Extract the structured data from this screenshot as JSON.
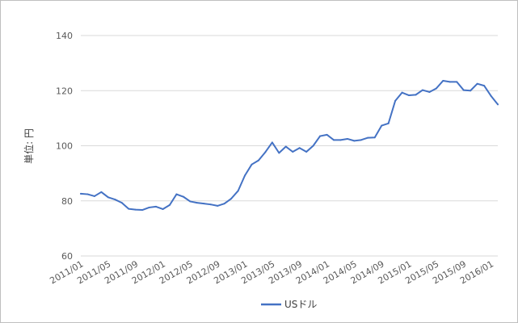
{
  "chart_data": {
    "type": "line",
    "title": "",
    "ylabel": "単位: 円",
    "xlabel": "",
    "ylim": [
      60,
      140
    ],
    "yticks": [
      60,
      80,
      100,
      120,
      140
    ],
    "xtick_labels": [
      "2011/01",
      "2011/05",
      "2011/09",
      "2012/01",
      "2012/05",
      "2012/09",
      "2013/01",
      "2013/05",
      "2013/09",
      "2014/01",
      "2014/05",
      "2014/09",
      "2015/01",
      "2015/05",
      "2015/09",
      "2016/01"
    ],
    "x": [
      "2011/01",
      "2011/02",
      "2011/03",
      "2011/04",
      "2011/05",
      "2011/06",
      "2011/07",
      "2011/08",
      "2011/09",
      "2011/10",
      "2011/11",
      "2011/12",
      "2012/01",
      "2012/02",
      "2012/03",
      "2012/04",
      "2012/05",
      "2012/06",
      "2012/07",
      "2012/08",
      "2012/09",
      "2012/10",
      "2012/11",
      "2012/12",
      "2013/01",
      "2013/02",
      "2013/03",
      "2013/04",
      "2013/05",
      "2013/06",
      "2013/07",
      "2013/08",
      "2013/09",
      "2013/10",
      "2013/11",
      "2013/12",
      "2014/01",
      "2014/02",
      "2014/03",
      "2014/04",
      "2014/05",
      "2014/06",
      "2014/07",
      "2014/08",
      "2014/09",
      "2014/10",
      "2014/11",
      "2014/12",
      "2015/01",
      "2015/02",
      "2015/03",
      "2015/04",
      "2015/05",
      "2015/06",
      "2015/07",
      "2015/08",
      "2015/09",
      "2015/10",
      "2015/11",
      "2015/12",
      "2016/01",
      "2016/02"
    ],
    "series": [
      {
        "name": "USドル",
        "color": "#4472c4",
        "values": [
          82.6,
          82.4,
          81.7,
          83.2,
          81.3,
          80.5,
          79.3,
          77.1,
          76.8,
          76.7,
          77.6,
          77.9,
          77.0,
          78.5,
          82.4,
          81.5,
          79.8,
          79.3,
          79.0,
          78.7,
          78.2,
          79.0,
          80.8,
          83.6,
          89.2,
          93.2,
          94.7,
          97.7,
          101.2,
          97.4,
          99.7,
          97.8,
          99.2,
          97.8,
          100.0,
          103.5,
          104.0,
          102.1,
          102.1,
          102.5,
          101.8,
          102.1,
          102.9,
          103.0,
          107.3,
          108.1,
          116.3,
          119.3,
          118.3,
          118.5,
          120.2,
          119.5,
          120.8,
          123.6,
          123.2,
          123.2,
          120.2,
          120.0,
          122.5,
          121.8,
          118.1,
          115.0
        ]
      }
    ],
    "legend": {
      "position": "bottom",
      "label": "USドル"
    },
    "grid": {
      "horizontal": true,
      "color": "#d9d9d9"
    }
  }
}
